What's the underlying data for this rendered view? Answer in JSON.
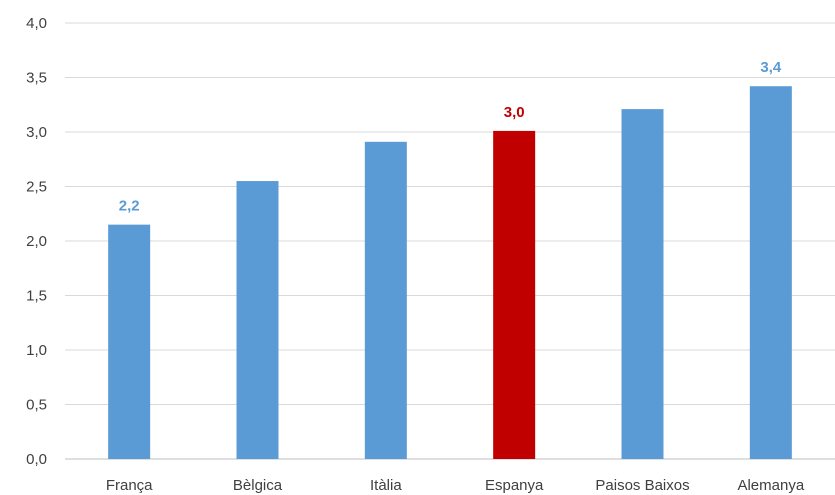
{
  "chart_data": {
    "type": "bar",
    "categories": [
      "França",
      "Bèlgica",
      "Itàlia",
      "Espanya",
      "Paisos Baixos",
      "Alemanya"
    ],
    "values": [
      2.15,
      2.55,
      2.91,
      3.01,
      3.21,
      3.42
    ],
    "data_labels": [
      "2,2",
      "",
      "",
      "3,0",
      "",
      "3,4"
    ],
    "highlight": "Espanya",
    "ylim": [
      0,
      4
    ],
    "yticks": [
      "0,0",
      "0,5",
      "1,0",
      "1,5",
      "2,0",
      "2,5",
      "3,0",
      "3,5",
      "4,0"
    ],
    "grid": true,
    "legend": "none",
    "title": "",
    "xlabel": "",
    "ylabel": "",
    "colors": {
      "bar": "#5B9BD5",
      "highlight": "#C00000",
      "grid": "#D9D9D9",
      "axis": "#BFBFBF",
      "label": "#5B9BD5",
      "highlight_label": "#C00000"
    }
  }
}
